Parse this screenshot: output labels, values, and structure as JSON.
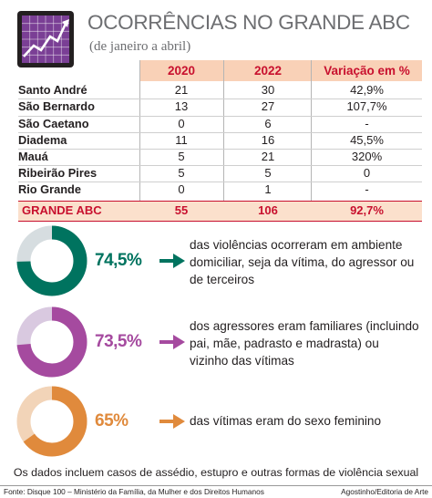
{
  "header": {
    "title": "OCORRÊNCIAS NO GRANDE ABC",
    "subtitle": "(de janeiro a abril)",
    "logo_icon": "rising-line-chart-icon"
  },
  "chart_data": [
    {
      "type": "table",
      "columns": [
        "",
        "2020",
        "2022",
        "Variação em %"
      ],
      "rows": [
        {
          "name": "Santo André",
          "v2020": "21",
          "v2022": "30",
          "var": "42,9%"
        },
        {
          "name": "São Bernardo",
          "v2020": "13",
          "v2022": "27",
          "var": "107,7%"
        },
        {
          "name": "São Caetano",
          "v2020": "0",
          "v2022": "6",
          "var": "-"
        },
        {
          "name": "Diadema",
          "v2020": "11",
          "v2022": "16",
          "var": "45,5%"
        },
        {
          "name": "Mauá",
          "v2020": "5",
          "v2022": "21",
          "var": "320%"
        },
        {
          "name": "Ribeirão Pires",
          "v2020": "5",
          "v2022": "5",
          "var": "0"
        },
        {
          "name": "Rio Grande",
          "v2020": "0",
          "v2022": "1",
          "var": "-"
        }
      ],
      "total": {
        "name": "GRANDE ABC",
        "v2020": "55",
        "v2022": "106",
        "var": "92,7%"
      }
    },
    {
      "type": "pie",
      "stats": [
        {
          "label": "74,5%",
          "value": 74.5,
          "color": "#00735f",
          "track": "#d6dde0",
          "text": "das violências ocorreram em ambiente domiciliar, seja da vítima, do agressor ou de terceiros"
        },
        {
          "label": "73,5%",
          "value": 73.5,
          "color": "#a54a9f",
          "track": "#d9c9e0",
          "text": "dos agressores eram familiares (incluindo pai, mãe, padrasto e madrasta) ou vizinho das vítimas"
        },
        {
          "label": "65%",
          "value": 65,
          "color": "#e08a3c",
          "track": "#f2d4b8",
          "text": "das vítimas eram do sexo feminino"
        }
      ]
    }
  ],
  "footnote": "Os dados incluem casos de assédio, estupro e outras formas de violência sexual",
  "footer": {
    "source": "Fonte: Disque 100 – Ministério da Família, da Mulher e dos Direitos Humanos",
    "credit": "Agostinho/Editoria de Arte"
  },
  "colors": {
    "accent": "#c8102e",
    "header_bg": "#f9d1b7",
    "total_bg": "#fbe0cc"
  }
}
